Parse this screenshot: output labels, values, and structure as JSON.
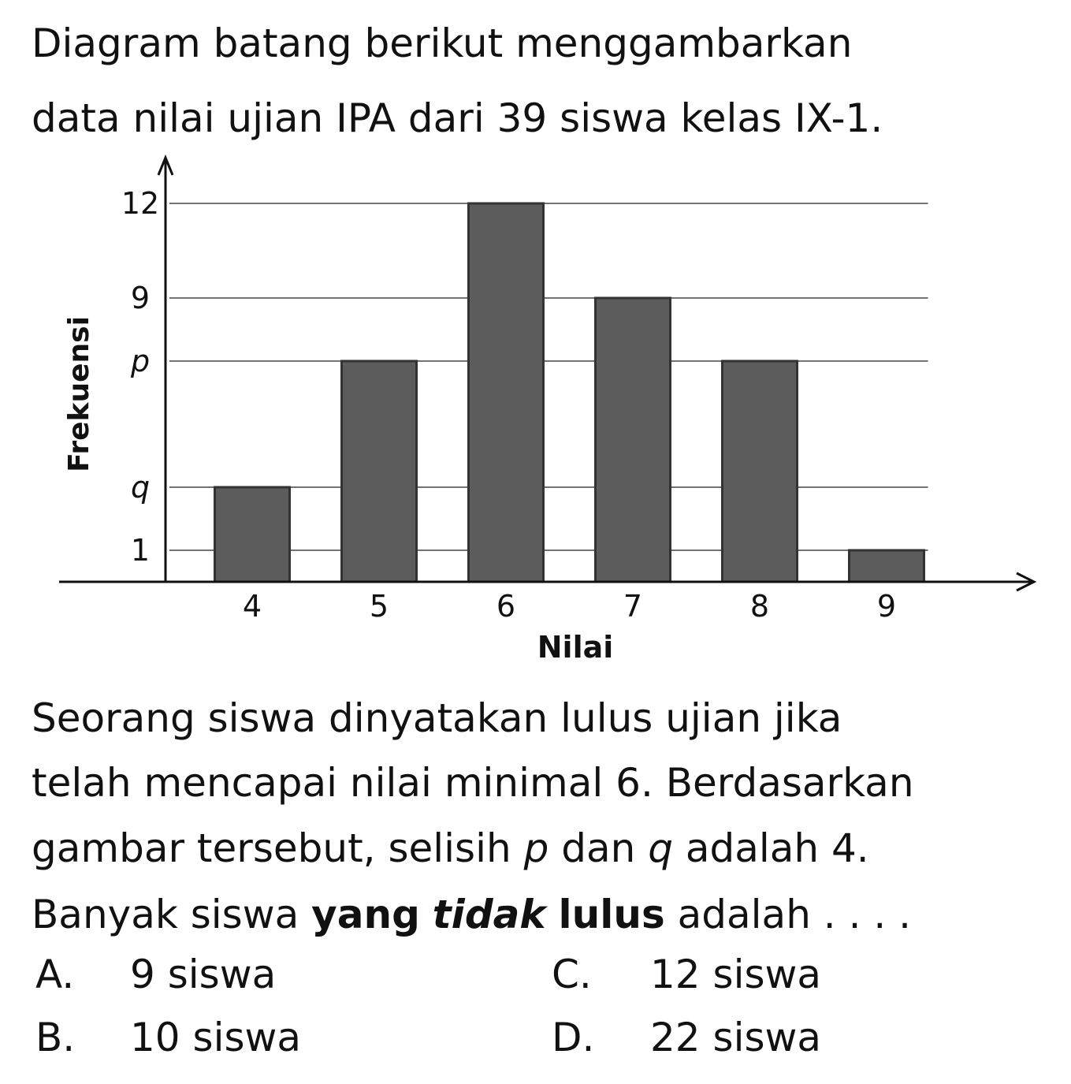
{
  "question": {
    "intro": [
      "Diagram batang berikut menggambarkan",
      "data nilai ujian IPA dari 39 siswa kelas IX-1."
    ],
    "body": [
      [
        "Seorang siswa dinyatakan lulus ujian jika"
      ],
      [
        "telah mencapai nilai minimal 6. Berdasarkan"
      ],
      [
        "gambar tersebut, selisih ",
        "p",
        " dan ",
        "q",
        " adalah 4."
      ],
      [
        "Banyak siswa ",
        "yang",
        " ",
        "tidak",
        " ",
        "lulus",
        " adalah . . . ."
      ]
    ]
  },
  "chart_data": {
    "type": "bar",
    "x_label": "Nilai",
    "y_label": "Frekuensi",
    "categories": [
      "4",
      "5",
      "6",
      "7",
      "8",
      "9"
    ],
    "values": [
      3,
      7,
      12,
      9,
      7,
      1
    ],
    "color": "#5c5c5c",
    "ylim": [
      0,
      13.4
    ],
    "yticks": [
      1,
      {
        "value": 3,
        "label": "q"
      },
      {
        "value": 7,
        "label": "p"
      },
      9,
      12
    ],
    "grid": true
  },
  "options": [
    {
      "letter": "A.",
      "text": "9 siswa"
    },
    {
      "letter": "B.",
      "text": "10 siswa"
    },
    {
      "letter": "C.",
      "text": "12 siswa"
    },
    {
      "letter": "D.",
      "text": "22 siswa"
    }
  ]
}
